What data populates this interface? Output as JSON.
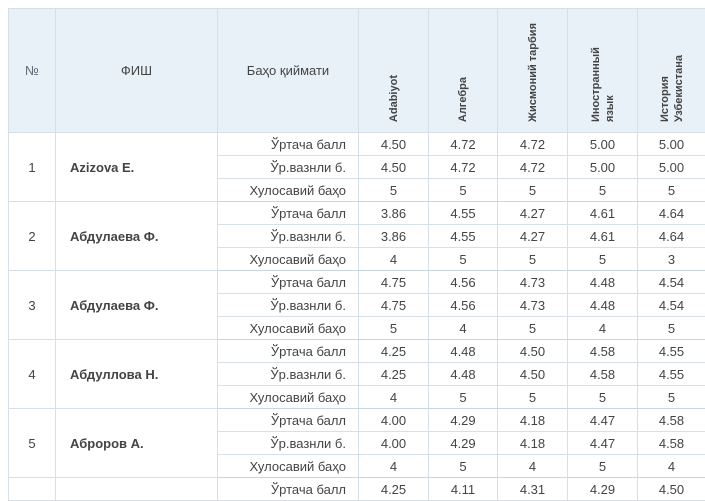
{
  "table": {
    "header": {
      "number": "№",
      "name": "ФИШ",
      "grade_type": "Баҳо қиймати",
      "subjects": [
        "Adabiyot",
        "Алгебра",
        "Жисмоний тарбия",
        "Иностранный язык",
        "История Узбекистана"
      ]
    },
    "row_labels": [
      "Ўртача балл",
      "Ўр.вазнли б.",
      "Хулосавий баҳо"
    ],
    "students": [
      {
        "num": "1",
        "name": "Azizova E.",
        "rows": [
          [
            "4.50",
            "4.72",
            "4.72",
            "5.00",
            "5.00"
          ],
          [
            "4.50",
            "4.72",
            "4.72",
            "5.00",
            "5.00"
          ],
          [
            "5",
            "5",
            "5",
            "5",
            "5"
          ]
        ]
      },
      {
        "num": "2",
        "name": "Абдулаева Ф.",
        "rows": [
          [
            "3.86",
            "4.55",
            "4.27",
            "4.61",
            "4.64"
          ],
          [
            "3.86",
            "4.55",
            "4.27",
            "4.61",
            "4.64"
          ],
          [
            "4",
            "5",
            "5",
            "5",
            "3"
          ]
        ]
      },
      {
        "num": "3",
        "name": "Абдулаева Ф.",
        "rows": [
          [
            "4.75",
            "4.56",
            "4.73",
            "4.48",
            "4.54"
          ],
          [
            "4.75",
            "4.56",
            "4.73",
            "4.48",
            "4.54"
          ],
          [
            "5",
            "4",
            "5",
            "4",
            "5"
          ]
        ]
      },
      {
        "num": "4",
        "name": "Абдуллова Н.",
        "rows": [
          [
            "4.25",
            "4.48",
            "4.50",
            "4.58",
            "4.55"
          ],
          [
            "4.25",
            "4.48",
            "4.50",
            "4.58",
            "4.55"
          ],
          [
            "4",
            "5",
            "5",
            "5",
            "5"
          ]
        ]
      },
      {
        "num": "5",
        "name": "Аброров А.",
        "rows": [
          [
            "4.00",
            "4.29",
            "4.18",
            "4.47",
            "4.58"
          ],
          [
            "4.00",
            "4.29",
            "4.18",
            "4.47",
            "4.58"
          ],
          [
            "4",
            "5",
            "4",
            "5",
            "4"
          ]
        ]
      },
      {
        "num": "",
        "name": "",
        "partial": true,
        "rows": [
          [
            "4.25",
            "4.11",
            "4.31",
            "4.29",
            "4.50"
          ]
        ]
      }
    ],
    "colors": {
      "header_bg": "#e9f1f8",
      "header_text": "#3d8fc4",
      "number_header_text": "#5d6a76",
      "name_text": "#8fb356",
      "cell_text": "#444444",
      "border": "#d7e0e8",
      "group_border": "#c9d5e0"
    }
  }
}
